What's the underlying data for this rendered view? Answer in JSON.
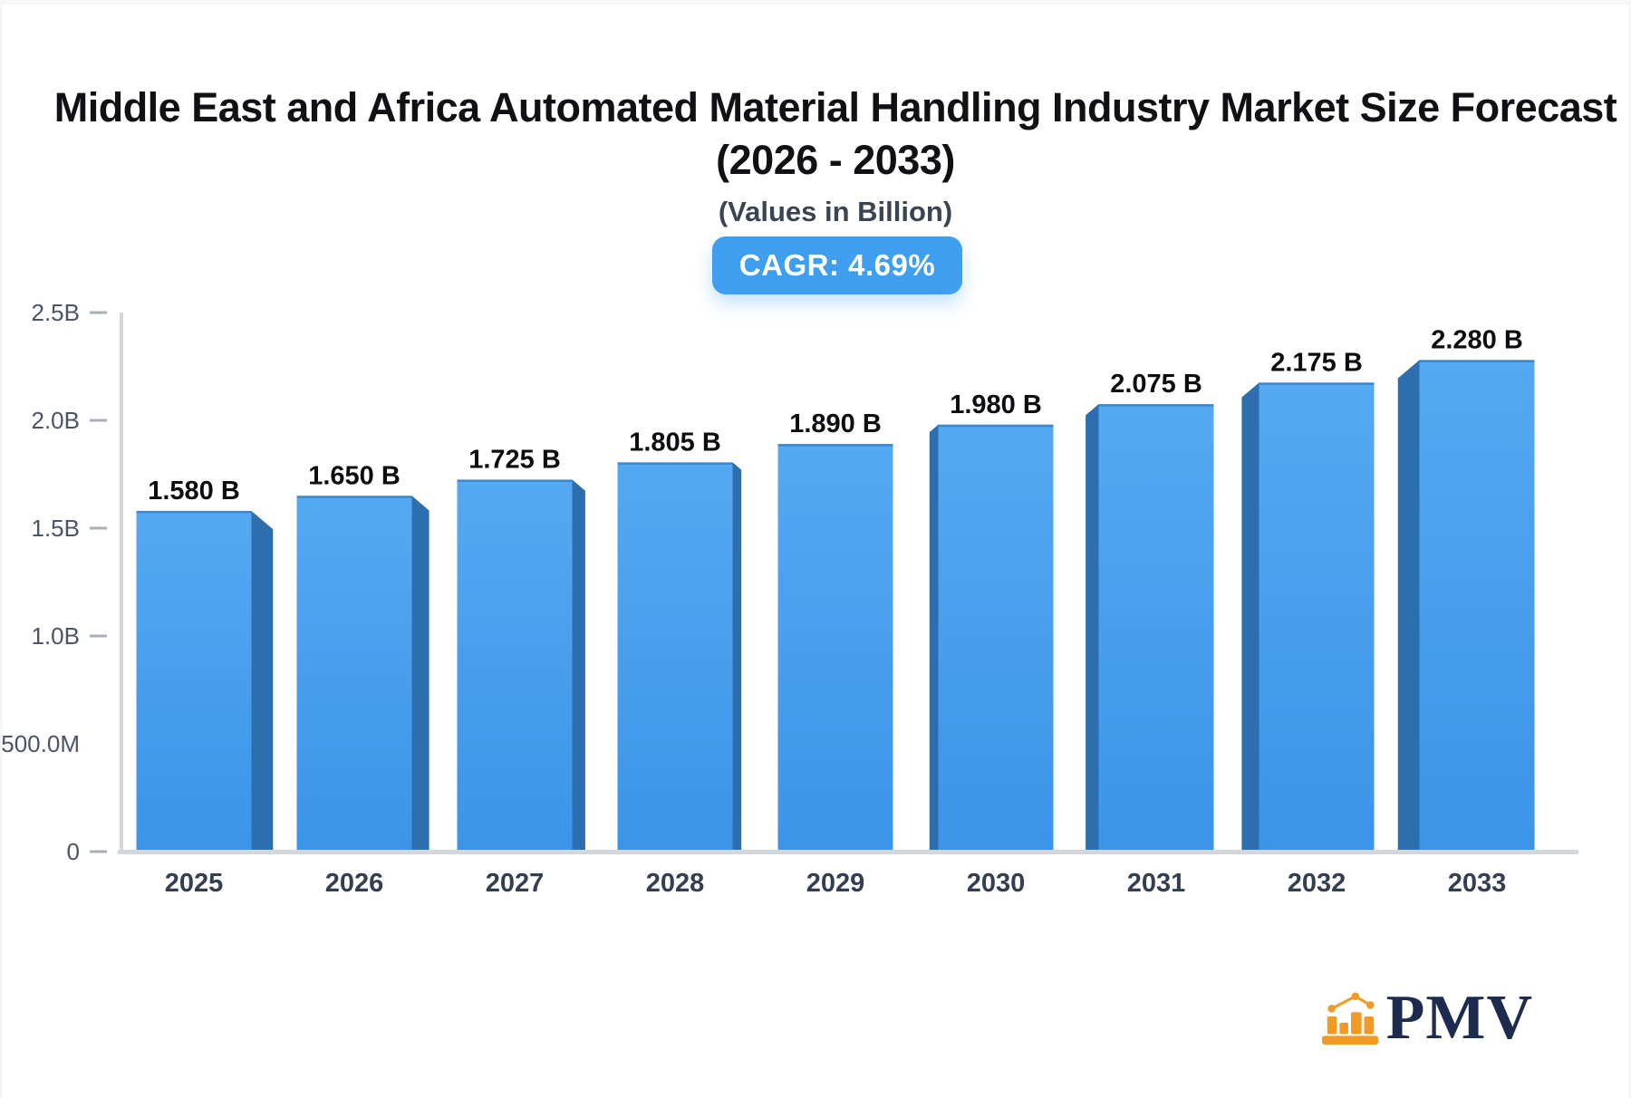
{
  "header": {
    "title_line1": "Middle East and Africa Automated Material Handling Industry Market Size Forecast",
    "title_line2": "(2026 - 2033)",
    "subtitle": "(Values in Billion)",
    "cagr_badge": "CAGR: 4.69%"
  },
  "footer": {
    "logo_text": "PMV"
  },
  "colors": {
    "badge_bg": "#3f9ef0",
    "bar_face_top": "#55a9f1",
    "bar_face_bottom": "#3c94e9",
    "bar_top_edge": "#3584cf",
    "bar_side": "#2d6fae",
    "axis_line": "#d3d6db",
    "tick_dash": "#a8afba",
    "ytick_text": "#4b5565",
    "xtick_text": "#333e50",
    "value_text": "#0b0d10",
    "logo_orange": "#f29a26",
    "logo_navy": "#1d2c4e"
  },
  "chart_data": {
    "type": "bar",
    "title": "Middle East and Africa Automated Material Handling Industry Market Size Forecast (2026 - 2033)",
    "subtitle": "(Values in Billion)",
    "cagr": "CAGR: 4.69%",
    "categories": [
      "2025",
      "2026",
      "2027",
      "2028",
      "2029",
      "2030",
      "2031",
      "2032",
      "2033"
    ],
    "values": [
      1.58,
      1.65,
      1.725,
      1.805,
      1.89,
      1.98,
      2.075,
      2.175,
      2.28
    ],
    "value_labels": [
      "1.580 B",
      "1.650 B",
      "1.725 B",
      "1.805 B",
      "1.890 B",
      "1.980 B",
      "2.075 B",
      "2.175 B",
      "2.280 B"
    ],
    "xlabel": "",
    "ylabel": "",
    "ylim": [
      0,
      2.5
    ],
    "grid": false,
    "legend": false,
    "yticks": [
      {
        "label": "2.5B",
        "value": 2.5,
        "dash": true
      },
      {
        "label": "2.0B",
        "value": 2.0,
        "dash": true
      },
      {
        "label": "1.5B",
        "value": 1.5,
        "dash": true
      },
      {
        "label": "1.0B",
        "value": 1.0,
        "dash": true
      },
      {
        "label": "500.0M",
        "value": 0.5,
        "dash": false
      },
      {
        "label": "0",
        "value": 0.0,
        "dash": true
      }
    ]
  }
}
